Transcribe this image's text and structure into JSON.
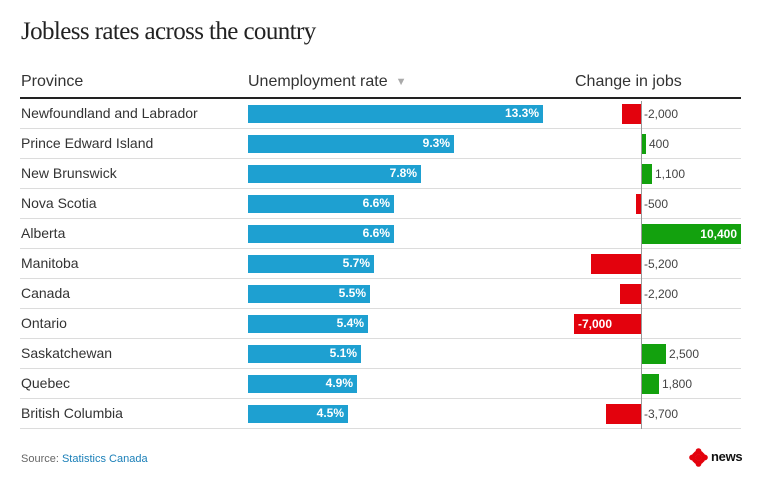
{
  "title": "Jobless rates across the country",
  "columns": {
    "province": "Province",
    "rate": "Unemployment rate",
    "sort_icon": "sort-down-icon",
    "change": "Change in jobs"
  },
  "source": {
    "prefix": "Source: ",
    "link": "Statistics Canada"
  },
  "logo": {
    "word": "news",
    "icon": "cbc-gem-icon"
  },
  "colors": {
    "rate_bar": "#1ea0d1",
    "negative": "#e3020d",
    "positive": "#13a10e"
  },
  "chart_data": {
    "type": "table",
    "columns": [
      "Province",
      "Unemployment rate",
      "Change in jobs"
    ],
    "rows": [
      {
        "province": "Newfoundland and Labrador",
        "rate": 13.3,
        "rate_label": "13.3%",
        "change": -2000,
        "change_label": "-2,000"
      },
      {
        "province": "Prince Edward Island",
        "rate": 9.3,
        "rate_label": "9.3%",
        "change": 400,
        "change_label": "400"
      },
      {
        "province": "New Brunswick",
        "rate": 7.8,
        "rate_label": "7.8%",
        "change": 1100,
        "change_label": "1,100"
      },
      {
        "province": "Nova Scotia",
        "rate": 6.6,
        "rate_label": "6.6%",
        "change": -500,
        "change_label": "-500"
      },
      {
        "province": "Alberta",
        "rate": 6.6,
        "rate_label": "6.6%",
        "change": 10400,
        "change_label": "10,400"
      },
      {
        "province": "Manitoba",
        "rate": 5.7,
        "rate_label": "5.7%",
        "change": -5200,
        "change_label": "-5,200"
      },
      {
        "province": "Canada",
        "rate": 5.5,
        "rate_label": "5.5%",
        "change": -2200,
        "change_label": "-2,200"
      },
      {
        "province": "Ontario",
        "rate": 5.4,
        "rate_label": "5.4%",
        "change": -7000,
        "change_label": "-7,000"
      },
      {
        "province": "Saskatchewan",
        "rate": 5.1,
        "rate_label": "5.1%",
        "change": 2500,
        "change_label": "2,500"
      },
      {
        "province": "Quebec",
        "rate": 4.9,
        "rate_label": "4.9%",
        "change": 1800,
        "change_label": "1,800"
      },
      {
        "province": "British Columbia",
        "rate": 4.5,
        "rate_label": "4.5%",
        "change": -3700,
        "change_label": "-3,700"
      }
    ],
    "sort": "Unemployment rate descending"
  }
}
